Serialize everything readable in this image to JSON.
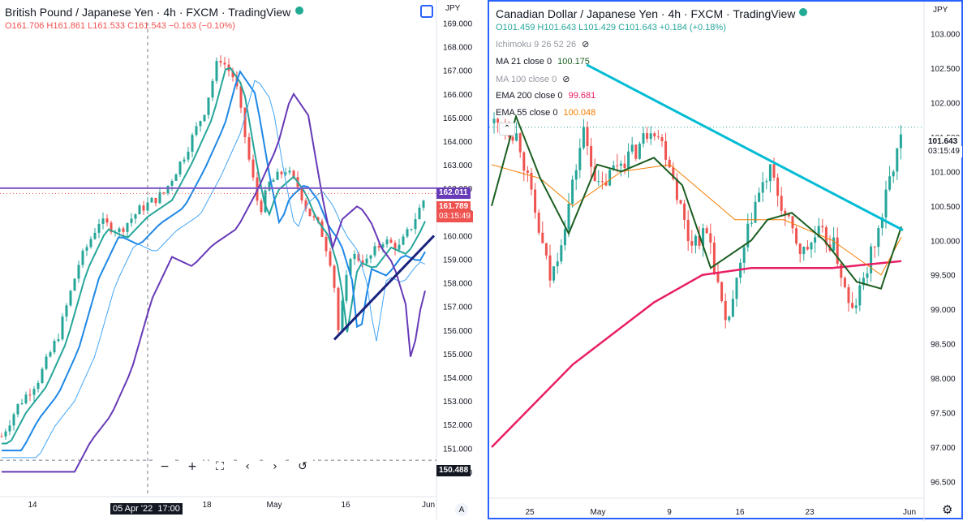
{
  "left_chart": {
    "title": "British Pound / Japanese Yen · 4h · FXCM · TradingView",
    "ohlc": {
      "o": "O161.706",
      "h": "H161.861",
      "l": "L161.533",
      "c": "C161.543",
      "chg": "−0.163 (−0.10%)"
    },
    "currency": "JPY",
    "hline_price": "162.011",
    "last_price": "161.789",
    "countdown": "03:15:49",
    "crosshair_price": "150.488",
    "crosshair_time": "05 Apr '22",
    "crosshair_clock": "17:00",
    "auto_label": "A",
    "toolbar": [
      "−",
      "+",
      "⛶",
      "‹",
      "›",
      "↺"
    ],
    "colors": {
      "up": "#26a69a",
      "down": "#ef5350",
      "ma_fast": "#1e88e5",
      "purple": "#673ab7",
      "hline": "#7e57c2"
    }
  },
  "right_chart": {
    "title": "Canadian Dollar / Japanese Yen · 4h · FXCM · TradingView",
    "ohlc": {
      "o": "O101.459",
      "h": "H101.643",
      "l": "L101.429",
      "c": "C101.643",
      "chg": "+0.184 (+0.18%)"
    },
    "currency": "JPY",
    "indicators": [
      {
        "label": "Ichimoku 9 26 52 26",
        "value": "",
        "color": "#9598a1"
      },
      {
        "label": "MA 21 close 0",
        "value": "100.175",
        "color": "#1b5e20"
      },
      {
        "label": "MA 100 close 0",
        "value": "",
        "color": "#9598a1"
      },
      {
        "label": "EMA 200 close 0",
        "value": "99.681",
        "color": "#e91e63"
      },
      {
        "label": "EMA 55 close 0",
        "value": "100.048",
        "color": "#f57c00"
      }
    ],
    "last_price": "101.643",
    "countdown": "03:15:49",
    "colors": {
      "up": "#26a69a",
      "down": "#ef5350",
      "trend": "#00bcd4",
      "ma21": "#1b5e20",
      "ema200": "#e91e63",
      "ema55": "#f57c00"
    }
  },
  "chart_data": [
    {
      "type": "line",
      "title": "British Pound / Japanese Yen · 4h · FXCM",
      "ylabel": "JPY",
      "ylim": [
        149.6,
        169.5
      ],
      "y_ticks": [
        "169.000",
        "168.000",
        "167.000",
        "166.000",
        "165.000",
        "164.000",
        "163.000",
        "162.000",
        "161.000",
        "160.000",
        "159.000",
        "158.000",
        "157.000",
        "156.000",
        "155.000",
        "154.000",
        "153.000",
        "152.000",
        "151.000",
        "150.000"
      ],
      "x_ticks": [
        "14",
        "18",
        "May",
        "16",
        "Jun"
      ],
      "series": [
        {
          "name": "close",
          "points": [
            [
              0,
              151.5
            ],
            [
              20,
              152.8
            ],
            [
              45,
              153.9
            ],
            [
              70,
              155.8
            ],
            [
              95,
              158.8
            ],
            [
              120,
              160.6
            ],
            [
              145,
              160.2
            ],
            [
              170,
              161.1
            ],
            [
              200,
              161.8
            ],
            [
              225,
              163.4
            ],
            [
              250,
              165.3
            ],
            [
              268,
              167.6
            ],
            [
              288,
              166.6
            ],
            [
              305,
              163.2
            ],
            [
              318,
              161.0
            ],
            [
              330,
              162.2
            ],
            [
              350,
              162.8
            ],
            [
              365,
              162.1
            ],
            [
              378,
              161.0
            ],
            [
              393,
              160.3
            ],
            [
              408,
              158.6
            ],
            [
              415,
              156.0
            ],
            [
              430,
              159.2
            ],
            [
              450,
              158.9
            ],
            [
              470,
              159.8
            ],
            [
              490,
              159.5
            ],
            [
              505,
              160.4
            ],
            [
              520,
              161.5
            ]
          ]
        }
      ],
      "annotations": [
        {
          "name": "horizontal level",
          "value": 162.011
        },
        {
          "name": "rising support",
          "from": [
            412,
            155.6
          ],
          "to": [
            535,
            160.0
          ]
        }
      ]
    },
    {
      "type": "line",
      "title": "Canadian Dollar / Japanese Yen · 4h · FXCM",
      "ylabel": "JPY",
      "ylim": [
        96.4,
        103.3
      ],
      "y_ticks": [
        "103.000",
        "102.500",
        "102.000",
        "101.500",
        "101.000",
        "100.500",
        "100.000",
        "99.500",
        "99.000",
        "98.500",
        "98.000",
        "97.500",
        "97.000",
        "96.500"
      ],
      "x_ticks": [
        "25",
        "May",
        "9",
        "16",
        "23",
        "Jun"
      ],
      "series": [
        {
          "name": "close",
          "points": [
            [
              10,
              101.7
            ],
            [
              30,
              101.5
            ],
            [
              50,
              100.4
            ],
            [
              70,
              99.4
            ],
            [
              90,
              100.4
            ],
            [
              110,
              101.6
            ],
            [
              130,
              100.7
            ],
            [
              150,
              101.1
            ],
            [
              175,
              101.3
            ],
            [
              195,
              101.7
            ],
            [
              215,
              101.2
            ],
            [
              240,
              100.0
            ],
            [
              265,
              100.1
            ],
            [
              285,
              98.7
            ],
            [
              300,
              99.4
            ],
            [
              320,
              100.5
            ],
            [
              340,
              101.0
            ],
            [
              360,
              100.3
            ],
            [
              380,
              99.8
            ],
            [
              400,
              100.1
            ],
            [
              420,
              99.9
            ],
            [
              440,
              98.9
            ],
            [
              455,
              99.4
            ],
            [
              475,
              100.2
            ],
            [
              490,
              101.0
            ],
            [
              505,
              101.6
            ]
          ]
        },
        {
          "name": "EMA 200 close 0",
          "points": [
            [
              0,
              97.0
            ],
            [
              100,
              98.2
            ],
            [
              200,
              99.1
            ],
            [
              260,
              99.5
            ],
            [
              320,
              99.6
            ],
            [
              420,
              99.6
            ],
            [
              505,
              99.7
            ]
          ]
        },
        {
          "name": "EMA 55 close 0",
          "points": [
            [
              0,
              101.1
            ],
            [
              60,
              100.9
            ],
            [
              100,
              100.5
            ],
            [
              160,
              101.0
            ],
            [
              220,
              101.1
            ],
            [
              300,
              100.3
            ],
            [
              360,
              100.3
            ],
            [
              420,
              100.0
            ],
            [
              480,
              99.5
            ],
            [
              505,
              100.05
            ]
          ]
        },
        {
          "name": "MA 21 close 0",
          "points": [
            [
              0,
              100.5
            ],
            [
              30,
              101.8
            ],
            [
              60,
              100.9
            ],
            [
              95,
              100.1
            ],
            [
              130,
              101.1
            ],
            [
              160,
              101.0
            ],
            [
              200,
              101.2
            ],
            [
              235,
              100.8
            ],
            [
              270,
              99.6
            ],
            [
              320,
              100.0
            ],
            [
              340,
              100.3
            ],
            [
              370,
              100.4
            ],
            [
              410,
              100.0
            ],
            [
              450,
              99.4
            ],
            [
              480,
              99.3
            ],
            [
              505,
              100.2
            ]
          ]
        }
      ],
      "annotations": [
        {
          "name": "descending trendline",
          "from": [
            120,
            102.55
          ],
          "to": [
            510,
            100.15
          ]
        }
      ]
    }
  ]
}
